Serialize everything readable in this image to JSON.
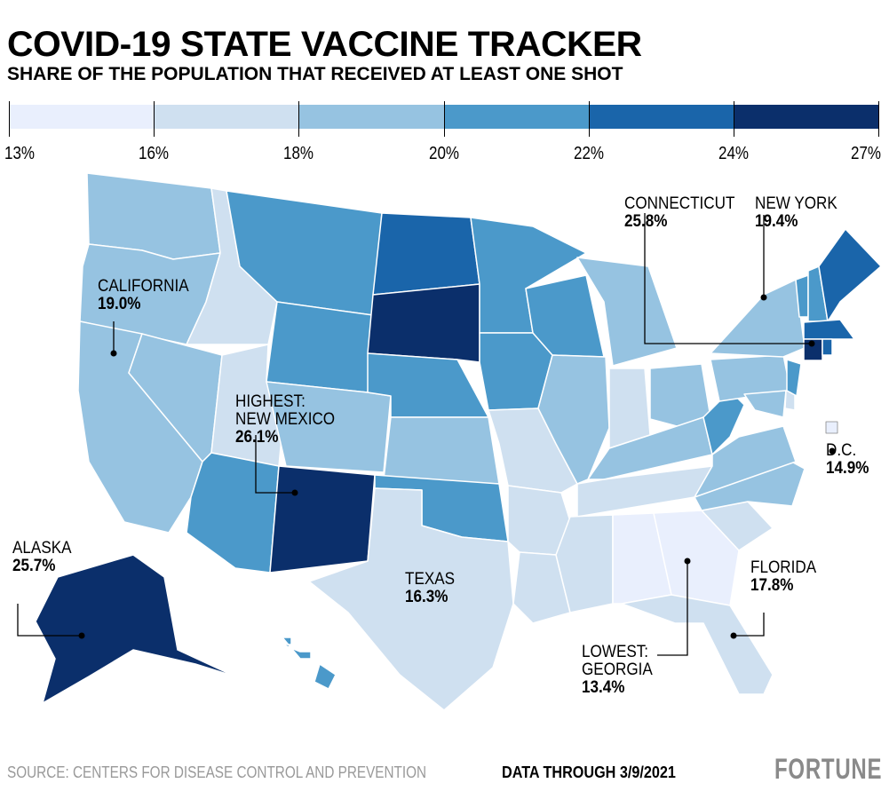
{
  "title": "COVID-19 STATE VACCINE TRACKER",
  "subtitle": "SHARE OF THE POPULATION THAT RECEIVED AT LEAST ONE SHOT",
  "legend": {
    "breaks": [
      "13%",
      "16%",
      "18%",
      "20%",
      "22%",
      "24%",
      "27%"
    ],
    "colors": [
      "#e9effd",
      "#cfe0f0",
      "#96c3e1",
      "#4b99ca",
      "#1a65aa",
      "#0b2f6b"
    ]
  },
  "state_bins": {
    "WA": 2,
    "OR": 2,
    "CA": 2,
    "ID": 1,
    "NV": 2,
    "MT": 3,
    "WY": 3,
    "UT": 1,
    "AZ": 3,
    "NM": 5,
    "CO": 2,
    "ND": 4,
    "SD": 5,
    "NE": 3,
    "KS": 2,
    "OK": 3,
    "TX": 1,
    "MN": 3,
    "IA": 3,
    "MO": 1,
    "AR": 1,
    "LA": 1,
    "WI": 3,
    "IL": 2,
    "MI": 2,
    "IN": 1,
    "OH": 2,
    "KY": 2,
    "TN": 1,
    "MS": 1,
    "AL": 0,
    "GA": 0,
    "FL": 1,
    "SC": 1,
    "NC": 2,
    "VA": 2,
    "WV": 3,
    "PA": 2,
    "NY": 2,
    "NJ": 3,
    "VT": 3,
    "NH": 3,
    "ME": 4,
    "MA": 4,
    "CT": 5,
    "RI": 4,
    "MD": 2,
    "DE": 1,
    "AK": 5,
    "HI": 3,
    "DC": 0
  },
  "annotations": {
    "california": {
      "name": "CALIFORNIA",
      "value": "19.0%"
    },
    "highest": {
      "name": "HIGHEST:\nNEW MEXICO",
      "line1": "HIGHEST:",
      "line2": "NEW MEXICO",
      "value": "26.1%"
    },
    "alaska": {
      "name": "ALASKA",
      "value": "25.7%"
    },
    "texas": {
      "name": "TEXAS",
      "value": "16.3%"
    },
    "lowest": {
      "line1": "LOWEST:",
      "line2": "GEORGIA",
      "value": "13.4%"
    },
    "florida": {
      "name": "FLORIDA",
      "value": "17.8%"
    },
    "dc": {
      "name": "D.C.",
      "value": "14.9%"
    },
    "connecticut": {
      "name": "CONNECTICUT",
      "value": "25.8%"
    },
    "new_york": {
      "name": "NEW YORK",
      "value": "19.4%"
    }
  },
  "footer": {
    "source": "SOURCE: CENTERS FOR DISEASE CONTROL AND PREVENTION",
    "date": "DATA THROUGH 3/9/2021",
    "logo": "FORTUNE"
  }
}
